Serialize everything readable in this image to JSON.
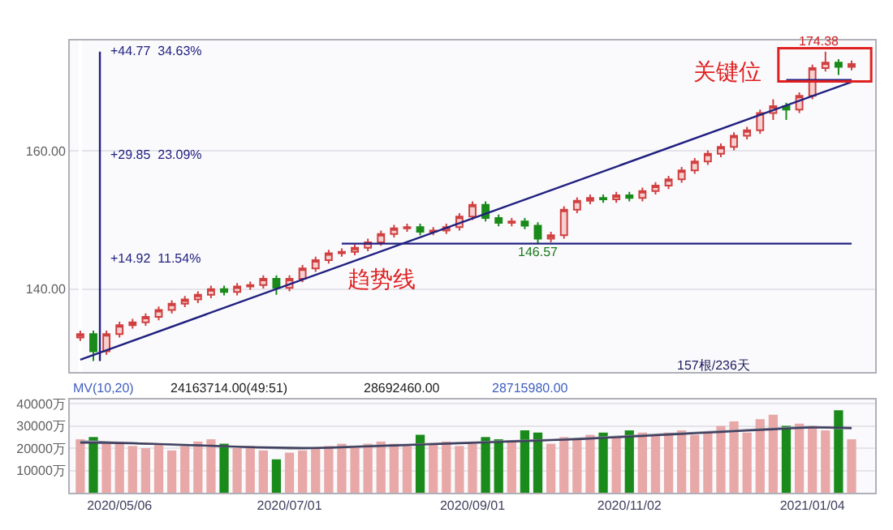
{
  "chart_data": [
    {
      "type": "candlestick",
      "categories": [
        null,
        null,
        null,
        null,
        null,
        null,
        null,
        null,
        null,
        null,
        null,
        null,
        null,
        null,
        null,
        null,
        null,
        null,
        null,
        null,
        null,
        null,
        null,
        null,
        null,
        null,
        null,
        null,
        null,
        null,
        null,
        null,
        null,
        null,
        null,
        null,
        null,
        null,
        null,
        null,
        null,
        null,
        null,
        null,
        null,
        null,
        null,
        null,
        null,
        null,
        null,
        null,
        null,
        null,
        null,
        null,
        null,
        null,
        null,
        null
      ],
      "ohlc": [
        [
          133.0,
          134.0,
          132.5,
          133.5
        ],
        [
          133.5,
          134.0,
          129.61,
          131.0
        ],
        [
          131.0,
          134.0,
          130.5,
          133.5
        ],
        [
          133.5,
          135.3,
          133.0,
          134.8
        ],
        [
          134.8,
          135.7,
          134.3,
          135.2
        ],
        [
          135.2,
          136.5,
          134.7,
          136.0
        ],
        [
          136.0,
          137.5,
          135.5,
          137.0
        ],
        [
          137.0,
          138.4,
          136.5,
          137.9
        ],
        [
          137.9,
          139.0,
          137.4,
          138.5
        ],
        [
          138.5,
          139.7,
          138.0,
          139.2
        ],
        [
          139.2,
          140.5,
          138.7,
          140.0
        ],
        [
          140.0,
          140.5,
          139.1,
          139.6
        ],
        [
          139.6,
          140.9,
          139.1,
          140.4
        ],
        [
          140.4,
          141.1,
          139.9,
          140.6
        ],
        [
          140.6,
          142.0,
          140.1,
          141.5
        ],
        [
          141.5,
          142.0,
          139.2,
          140.2
        ],
        [
          140.2,
          142.0,
          139.7,
          141.5
        ],
        [
          141.5,
          143.5,
          141.0,
          143.0
        ],
        [
          143.0,
          144.7,
          142.5,
          144.2
        ],
        [
          144.2,
          145.7,
          143.7,
          145.2
        ],
        [
          145.2,
          145.9,
          144.7,
          145.4
        ],
        [
          145.4,
          146.5,
          144.9,
          146.0
        ],
        [
          146.0,
          147.3,
          145.5,
          146.8
        ],
        [
          146.8,
          148.5,
          146.3,
          148.0
        ],
        [
          148.0,
          149.3,
          147.5,
          148.8
        ],
        [
          148.8,
          149.5,
          148.3,
          149.0
        ],
        [
          149.0,
          149.5,
          147.8,
          148.3
        ],
        [
          148.3,
          149.0,
          147.8,
          148.5
        ],
        [
          148.5,
          149.5,
          148.0,
          149.0
        ],
        [
          149.0,
          151.0,
          148.5,
          150.5
        ],
        [
          150.5,
          152.7,
          150.0,
          152.2
        ],
        [
          152.2,
          152.7,
          149.8,
          150.3
        ],
        [
          150.3,
          150.8,
          149.1,
          149.6
        ],
        [
          149.6,
          150.3,
          149.1,
          149.8
        ],
        [
          149.8,
          150.3,
          148.7,
          149.2
        ],
        [
          149.2,
          149.7,
          146.57,
          147.3
        ],
        [
          147.3,
          148.3,
          146.8,
          147.8
        ],
        [
          147.8,
          152.0,
          147.3,
          151.5
        ],
        [
          151.5,
          153.3,
          151.0,
          152.8
        ],
        [
          152.8,
          153.7,
          152.3,
          153.2
        ],
        [
          153.2,
          153.7,
          152.5,
          153.0
        ],
        [
          153.0,
          154.1,
          152.5,
          153.6
        ],
        [
          153.6,
          154.1,
          152.7,
          153.2
        ],
        [
          153.2,
          154.7,
          152.7,
          154.2
        ],
        [
          154.2,
          155.5,
          153.7,
          155.0
        ],
        [
          155.0,
          156.4,
          154.5,
          155.9
        ],
        [
          155.9,
          157.7,
          155.4,
          157.2
        ],
        [
          157.2,
          159.0,
          156.7,
          158.5
        ],
        [
          158.5,
          160.1,
          158.0,
          159.6
        ],
        [
          159.6,
          161.1,
          159.1,
          160.6
        ],
        [
          160.6,
          162.7,
          160.1,
          162.2
        ],
        [
          162.2,
          163.5,
          161.7,
          163.0
        ],
        [
          163.0,
          166.0,
          162.5,
          165.5
        ],
        [
          165.5,
          167.5,
          164.5,
          166.5
        ],
        [
          166.5,
          167.0,
          164.5,
          166.0
        ],
        [
          166.0,
          168.5,
          165.5,
          168.0
        ],
        [
          168.0,
          172.5,
          167.5,
          172.0
        ],
        [
          172.0,
          174.38,
          171.5,
          172.8
        ],
        [
          172.8,
          173.3,
          171.0,
          172.2
        ],
        [
          172.2,
          173.1,
          171.7,
          172.6
        ]
      ],
      "series": [
        {
          "type": "line",
          "color": "#202080",
          "values": [
            129.8,
            null,
            null,
            null,
            null,
            null,
            null,
            null,
            null,
            null,
            null,
            null,
            null,
            null,
            null,
            null,
            null,
            null,
            null,
            null,
            null,
            null,
            null,
            null,
            null,
            null,
            null,
            null,
            null,
            null,
            null,
            null,
            null,
            null,
            null,
            null,
            null,
            null,
            null,
            null,
            null,
            null,
            null,
            null,
            null,
            null,
            null,
            null,
            null,
            null,
            null,
            null,
            null,
            null,
            null,
            null,
            null,
            null,
            null,
            170.0
          ]
        },
        {
          "type": "line",
          "color": "#202080",
          "values": [
            null,
            null,
            null,
            null,
            null,
            null,
            null,
            null,
            null,
            null,
            null,
            null,
            null,
            null,
            null,
            null,
            null,
            null,
            null,
            null,
            146.6,
            null,
            null,
            null,
            null,
            null,
            null,
            null,
            null,
            null,
            null,
            null,
            null,
            null,
            null,
            null,
            null,
            null,
            null,
            null,
            null,
            null,
            null,
            null,
            null,
            null,
            null,
            null,
            null,
            null,
            null,
            null,
            null,
            null,
            null,
            null,
            null,
            null,
            null,
            146.6
          ]
        },
        {
          "type": "line",
          "color": "#202080",
          "values": [
            null,
            null,
            null,
            null,
            null,
            null,
            null,
            null,
            null,
            null,
            null,
            null,
            null,
            null,
            null,
            null,
            null,
            null,
            null,
            null,
            null,
            null,
            null,
            null,
            null,
            null,
            null,
            null,
            null,
            null,
            null,
            null,
            null,
            null,
            null,
            null,
            null,
            null,
            null,
            null,
            null,
            null,
            null,
            null,
            null,
            null,
            null,
            null,
            null,
            null,
            null,
            null,
            null,
            null,
            170.3,
            null,
            null,
            null,
            null,
            170.3
          ]
        }
      ],
      "annotations": [
        "+44.77  34.63%",
        "+29.85  23.09%",
        "+14.92  11.54%",
        "174.38",
        "146.57",
        "趋势线",
        "关键位",
        "157根/236天"
      ],
      "ylim": [
        128,
        176
      ],
      "yticks": [
        {
          "value": 140,
          "label": "140.00"
        },
        {
          "value": 160,
          "label": "160.00"
        }
      ],
      "grid": "y",
      "tick_labels": "y"
    },
    {
      "type": "bar",
      "categories": [
        null,
        null,
        null,
        "2020/05/06",
        null,
        null,
        null,
        null,
        null,
        null,
        null,
        null,
        null,
        null,
        null,
        null,
        "2020/07/01",
        null,
        null,
        null,
        null,
        null,
        null,
        null,
        null,
        null,
        null,
        null,
        null,
        null,
        "2020/09/01",
        null,
        null,
        null,
        null,
        null,
        null,
        null,
        null,
        null,
        null,
        null,
        "2020/11/02",
        null,
        null,
        null,
        null,
        null,
        null,
        null,
        null,
        null,
        null,
        null,
        null,
        null,
        "2021/01/04",
        null,
        null,
        null
      ],
      "series": [
        {
          "type": "bar",
          "colors": [
            "#e8a8a8",
            "#1a8a1a",
            "#e8a8a8",
            "#e8a8a8",
            "#e8a8a8",
            "#e8a8a8",
            "#e8a8a8",
            "#e8a8a8",
            "#e8a8a8",
            "#e8a8a8",
            "#e8a8a8",
            "#1a8a1a",
            "#e8a8a8",
            "#e8a8a8",
            "#e8a8a8",
            "#1a8a1a",
            "#e8a8a8",
            "#e8a8a8",
            "#e8a8a8",
            "#e8a8a8",
            "#e8a8a8",
            "#e8a8a8",
            "#e8a8a8",
            "#e8a8a8",
            "#e8a8a8",
            "#e8a8a8",
            "#1a8a1a",
            "#e8a8a8",
            "#e8a8a8",
            "#e8a8a8",
            "#e8a8a8",
            "#1a8a1a",
            "#1a8a1a",
            "#e8a8a8",
            "#1a8a1a",
            "#1a8a1a",
            "#e8a8a8",
            "#e8a8a8",
            "#e8a8a8",
            "#e8a8a8",
            "#1a8a1a",
            "#e8a8a8",
            "#1a8a1a",
            "#e8a8a8",
            "#e8a8a8",
            "#e8a8a8",
            "#e8a8a8",
            "#e8a8a8",
            "#e8a8a8",
            "#e8a8a8",
            "#e8a8a8",
            "#e8a8a8",
            "#e8a8a8",
            "#e8a8a8",
            "#1a8a1a",
            "#e8a8a8",
            "#e8a8a8",
            "#e8a8a8",
            "#1a8a1a",
            "#e8a8a8"
          ],
          "values": [
            24000,
            25000,
            22000,
            23000,
            21000,
            20000,
            22000,
            19000,
            21000,
            23000,
            24000,
            22000,
            20000,
            21000,
            19000,
            15000,
            18000,
            19000,
            20000,
            21000,
            22000,
            21000,
            22000,
            23000,
            22000,
            21000,
            26000,
            22000,
            23000,
            21000,
            22000,
            25000,
            24000,
            23000,
            28000,
            27000,
            22000,
            25000,
            24000,
            26000,
            27000,
            25000,
            28000,
            27000,
            26000,
            27000,
            28000,
            26000,
            27000,
            30000,
            32000,
            27000,
            33000,
            35000,
            30000,
            31000,
            30000,
            28000,
            37000,
            24000
          ]
        },
        {
          "type": "line",
          "color": "#9090a0",
          "values": [
            23000,
            23000,
            22800,
            22500,
            22300,
            22000,
            21800,
            21500,
            21300,
            21200,
            21000,
            20800,
            20600,
            20400,
            20200,
            20000,
            19800,
            19800,
            20000,
            20300,
            20600,
            20800,
            21000,
            21200,
            21400,
            21600,
            21800,
            22000,
            22200,
            22400,
            22600,
            22800,
            23000,
            23200,
            23400,
            23600,
            23800,
            24000,
            24300,
            24600,
            24900,
            25200,
            25500,
            25800,
            26100,
            26400,
            26700,
            27000,
            27300,
            27600,
            27900,
            28200,
            28500,
            28800,
            29100,
            29400,
            29600,
            29300,
            29000,
            28800
          ]
        },
        {
          "type": "line",
          "color": "#404060",
          "values": [
            22500,
            22500,
            22400,
            22300,
            22200,
            22000,
            21900,
            21700,
            21500,
            21300,
            21100,
            20900,
            20700,
            20500,
            20400,
            20300,
            20200,
            20100,
            20100,
            20200,
            20400,
            20600,
            20800,
            21000,
            21200,
            21400,
            21600,
            21800,
            22000,
            22200,
            22400,
            22600,
            22800,
            23000,
            23200,
            23400,
            23600,
            23800,
            24000,
            24300,
            24600,
            24900,
            25200,
            25500,
            25800,
            26100,
            26400,
            26700,
            27000,
            27300,
            27600,
            27900,
            28200,
            28500,
            28800,
            29100,
            29300,
            29300,
            29200,
            29100
          ]
        }
      ],
      "annotations": [
        "MV(10,20)",
        "24163714.00(49:51)",
        "28692460.00",
        "28715980.00"
      ],
      "ylim": [
        0,
        42000
      ],
      "yticks": [
        {
          "value": 10000,
          "label": "10000万"
        },
        {
          "value": 20000,
          "label": "20000万"
        },
        {
          "value": 30000,
          "label": "30000万"
        },
        {
          "value": 40000,
          "label": "40000万"
        }
      ],
      "grid": "y"
    }
  ]
}
